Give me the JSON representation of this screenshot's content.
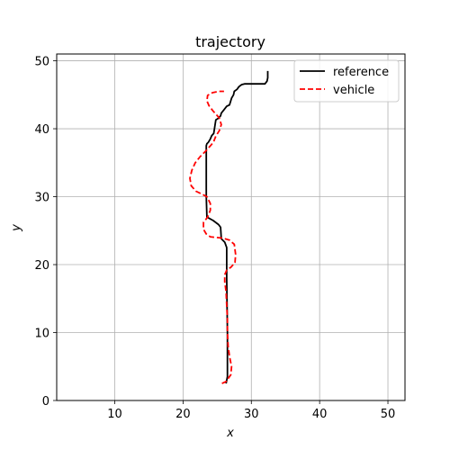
{
  "chart_data": {
    "type": "line",
    "title": "trajectory",
    "xlabel": "x",
    "ylabel": "y",
    "xlim": [
      1.5,
      52.5
    ],
    "ylim": [
      0,
      51
    ],
    "xticks": [
      10,
      20,
      30,
      40,
      50
    ],
    "yticks": [
      0,
      10,
      20,
      30,
      40,
      50
    ],
    "grid": true,
    "legend_position": "top-right",
    "series": [
      {
        "name": "reference",
        "color": "#000000",
        "dash": "solid",
        "x": [
          26.3,
          26.5,
          26.5,
          26.4,
          26.4,
          26.1,
          25.6,
          25.5,
          25.2,
          24.4,
          23.5,
          23.4,
          23.4,
          23.4,
          23.5,
          23.7,
          24.0,
          24.2,
          24.5,
          24.6,
          24.8,
          25.1,
          25.5,
          25.6,
          26.0,
          26.4,
          26.8,
          27.1,
          27.4,
          27.5,
          27.9,
          28.2,
          28.6,
          29.0,
          29.5,
          32.0,
          32.3,
          32.4,
          32.4
        ],
        "y": [
          2.5,
          3.5,
          10.0,
          18.0,
          22.5,
          23.3,
          23.8,
          25.5,
          25.9,
          26.5,
          27.0,
          30.0,
          35.0,
          37.5,
          37.8,
          38.0,
          38.5,
          39.0,
          39.3,
          40.0,
          41.3,
          41.5,
          41.9,
          42.3,
          42.8,
          43.3,
          43.5,
          44.5,
          45.0,
          45.5,
          45.8,
          46.2,
          46.5,
          46.6,
          46.6,
          46.6,
          47.0,
          47.5,
          48.5
        ]
      },
      {
        "name": "vehicle",
        "color": "#ff0000",
        "dash": "dashed",
        "x": [
          25.7,
          26.3,
          27.0,
          27.1,
          26.8,
          26.6,
          26.5,
          26.5,
          26.4,
          26.3,
          26.1,
          26.1,
          26.4,
          27.0,
          27.6,
          27.7,
          27.5,
          26.8,
          25.8,
          24.8,
          24.0,
          23.4,
          23.0,
          23.0,
          23.6,
          24.0,
          24.0,
          23.5,
          22.7,
          21.9,
          21.2,
          21.0,
          21.3,
          21.8,
          22.5,
          23.4,
          24.1,
          24.5,
          24.6,
          24.8,
          25.3,
          25.6,
          25.3,
          24.4,
          23.8,
          23.5,
          23.6,
          24.3,
          25.3,
          26.0
        ],
        "y": [
          2.5,
          2.8,
          3.8,
          5.0,
          6.5,
          8.0,
          10.0,
          12.0,
          14.0,
          16.0,
          17.5,
          18.5,
          19.2,
          19.6,
          20.3,
          21.5,
          23.0,
          23.6,
          23.9,
          24.0,
          24.1,
          24.5,
          25.2,
          26.2,
          27.0,
          28.0,
          29.0,
          30.0,
          30.4,
          30.8,
          31.6,
          32.7,
          33.9,
          35.0,
          35.9,
          36.8,
          37.6,
          38.1,
          38.4,
          38.9,
          39.7,
          40.6,
          41.6,
          42.6,
          43.4,
          44.1,
          44.9,
          45.3,
          45.5,
          45.5
        ]
      }
    ]
  }
}
